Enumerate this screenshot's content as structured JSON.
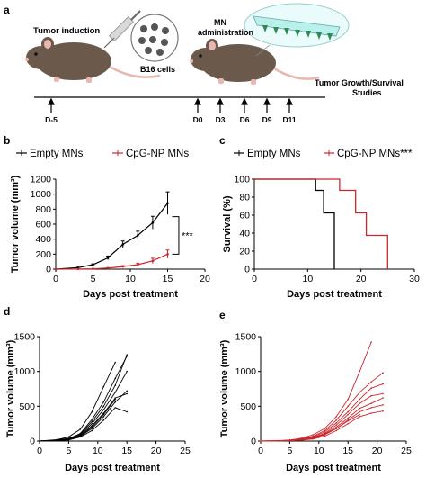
{
  "panel_letters": {
    "a": "a",
    "b": "b",
    "c": "c",
    "d": "d",
    "e": "e"
  },
  "schematic": {
    "tumor_induction": "Tumor induction",
    "b16_cells": "B16 cells",
    "mn_administration_line1": "MN",
    "mn_administration_line2": "administration",
    "tumor_growth_line1": "Tumor Growth/Survival",
    "tumor_growth_line2": "Studies",
    "timeline_labels": [
      "D-5",
      "D0",
      "D3",
      "D6",
      "D9",
      "D11"
    ],
    "colors": {
      "mouse": "#6b5a4c",
      "mouse_dark": "#4d3f34",
      "ear": "#e8b8b0",
      "patch": "#b9f0ec",
      "patch_dots": "#2e8b57"
    }
  },
  "legends": {
    "b": {
      "series1": "Empty MNs",
      "series2": "CpG-NP MNs"
    },
    "c": {
      "series1": "Empty MNs",
      "series2": "CpG-NP MNs***"
    }
  },
  "annotations": {
    "b_significance": "***"
  },
  "chart_data": [
    {
      "id": "b",
      "type": "line",
      "xlabel": "Days post treatment",
      "ylabel": "Tumor volume (mm³)",
      "xlim": [
        0,
        20
      ],
      "ylim": [
        0,
        1200
      ],
      "xticks": [
        0,
        5,
        10,
        15,
        20
      ],
      "yticks": [
        0,
        200,
        400,
        600,
        800,
        1000,
        1200
      ],
      "series": [
        {
          "name": "Empty MNs",
          "color": "#000000",
          "x": [
            0,
            3,
            5,
            7,
            9,
            11,
            13,
            15
          ],
          "y": [
            0,
            20,
            60,
            150,
            330,
            450,
            620,
            880
          ],
          "err": [
            0,
            5,
            10,
            25,
            45,
            55,
            85,
            150
          ]
        },
        {
          "name": "CpG-NP MNs",
          "color": "#c8282d",
          "x": [
            0,
            3,
            5,
            7,
            9,
            11,
            13,
            15
          ],
          "y": [
            0,
            2,
            5,
            15,
            35,
            60,
            110,
            200
          ],
          "err": [
            0,
            1,
            3,
            5,
            12,
            20,
            35,
            55
          ]
        }
      ]
    },
    {
      "id": "c",
      "type": "line",
      "xlabel": "Days post treatment",
      "ylabel": "Survival (%)",
      "xlim": [
        0,
        30
      ],
      "ylim": [
        0,
        100
      ],
      "xticks": [
        0,
        10,
        20,
        30
      ],
      "yticks": [
        0,
        20,
        40,
        60,
        80,
        100
      ],
      "series": [
        {
          "name": "Empty MNs",
          "color": "#000000",
          "x": [
            0,
            11.5,
            11.5,
            13,
            13,
            15,
            15
          ],
          "y": [
            100,
            100,
            87.5,
            87.5,
            62.5,
            62.5,
            0
          ]
        },
        {
          "name": "CpG-NP MNs***",
          "color": "#c8282d",
          "x": [
            0,
            16,
            16,
            19,
            19,
            21,
            21,
            25,
            25
          ],
          "y": [
            100,
            100,
            87.5,
            87.5,
            62.5,
            62.5,
            37.5,
            37.5,
            0
          ]
        }
      ]
    },
    {
      "id": "d",
      "type": "line",
      "xlabel": "Days post treatment",
      "ylabel": "Tumor volume (mm³)",
      "xlim": [
        0,
        25
      ],
      "ylim": [
        0,
        1500
      ],
      "xticks": [
        0,
        5,
        10,
        15,
        20,
        25
      ],
      "yticks": [
        0,
        500,
        1000,
        1500
      ],
      "color": "#000000",
      "series": [
        {
          "x": [
            0,
            3,
            5,
            7,
            9,
            11,
            13,
            15
          ],
          "y": [
            0,
            15,
            40,
            100,
            280,
            500,
            800,
            1240
          ]
        },
        {
          "x": [
            0,
            3,
            5,
            7,
            9,
            11,
            13,
            15
          ],
          "y": [
            0,
            10,
            30,
            110,
            310,
            560,
            900,
            1220
          ]
        },
        {
          "x": [
            0,
            3,
            5,
            7,
            9,
            11,
            13
          ],
          "y": [
            0,
            20,
            60,
            170,
            420,
            780,
            1130
          ]
        },
        {
          "x": [
            0,
            3,
            5,
            7,
            9,
            11,
            13,
            15
          ],
          "y": [
            0,
            10,
            35,
            90,
            250,
            450,
            700,
            1000
          ]
        },
        {
          "x": [
            0,
            3,
            5,
            7,
            9,
            11,
            13,
            15
          ],
          "y": [
            0,
            8,
            25,
            80,
            220,
            400,
            620,
            680
          ]
        },
        {
          "x": [
            0,
            3,
            5,
            7,
            9,
            11,
            13,
            15
          ],
          "y": [
            0,
            5,
            20,
            70,
            180,
            350,
            560,
            720
          ]
        },
        {
          "x": [
            0,
            3,
            5,
            7,
            9,
            11,
            13,
            15
          ],
          "y": [
            0,
            4,
            15,
            60,
            150,
            300,
            480,
            420
          ]
        },
        {
          "x": [
            0,
            3,
            5,
            7,
            9,
            11,
            13
          ],
          "y": [
            0,
            6,
            22,
            75,
            200,
            380,
            600
          ]
        }
      ]
    },
    {
      "id": "e",
      "type": "line",
      "xlabel": "Days post treatment",
      "ylabel": "Tumor volume (mm³)",
      "xlim": [
        0,
        25
      ],
      "ylim": [
        0,
        1500
      ],
      "xticks": [
        0,
        5,
        10,
        15,
        20,
        25
      ],
      "yticks": [
        0,
        500,
        1000,
        1500
      ],
      "color": "#c8282d",
      "series": [
        {
          "x": [
            0,
            3,
            5,
            7,
            9,
            11,
            13,
            15,
            17,
            19
          ],
          "y": [
            0,
            5,
            15,
            40,
            90,
            180,
            350,
            600,
            1000,
            1420
          ]
        },
        {
          "x": [
            0,
            3,
            5,
            7,
            9,
            11,
            13,
            15,
            17,
            19,
            21
          ],
          "y": [
            0,
            5,
            10,
            30,
            70,
            150,
            300,
            500,
            700,
            850,
            980
          ]
        },
        {
          "x": [
            0,
            3,
            5,
            7,
            9,
            11,
            13,
            15,
            17,
            19,
            21
          ],
          "y": [
            0,
            3,
            10,
            25,
            60,
            130,
            260,
            420,
            600,
            760,
            820
          ]
        },
        {
          "x": [
            0,
            3,
            5,
            7,
            9,
            11,
            13,
            15,
            17,
            19,
            21
          ],
          "y": [
            0,
            4,
            12,
            28,
            50,
            110,
            230,
            380,
            540,
            650,
            680
          ]
        },
        {
          "x": [
            0,
            3,
            5,
            7,
            9,
            11,
            13,
            15,
            17,
            19,
            21
          ],
          "y": [
            0,
            3,
            8,
            20,
            45,
            100,
            200,
            330,
            470,
            540,
            620
          ]
        },
        {
          "x": [
            0,
            3,
            5,
            7,
            9,
            11,
            13,
            15,
            17,
            19,
            21
          ],
          "y": [
            0,
            2,
            6,
            15,
            40,
            90,
            180,
            300,
            420,
            480,
            520
          ]
        },
        {
          "x": [
            0,
            3,
            5,
            7,
            9,
            11,
            13,
            15,
            17,
            19,
            21
          ],
          "y": [
            0,
            2,
            5,
            12,
            30,
            70,
            150,
            250,
            350,
            400,
            430
          ]
        },
        {
          "x": [
            0,
            3,
            5,
            7,
            9,
            11,
            13,
            15,
            17
          ],
          "y": [
            0,
            2,
            6,
            18,
            40,
            90,
            180,
            290,
            380
          ]
        }
      ]
    }
  ]
}
